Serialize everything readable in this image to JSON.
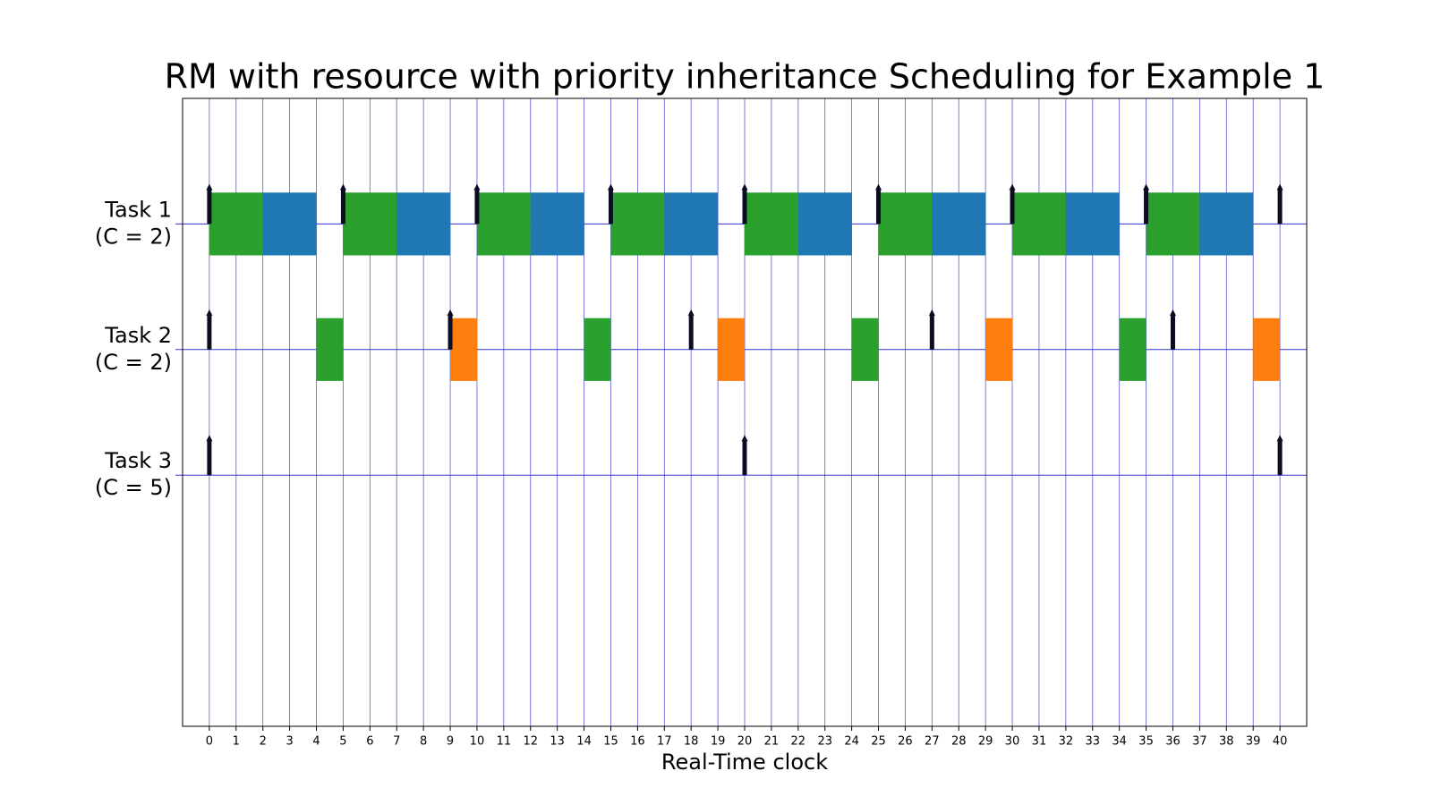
{
  "chart_data": {
    "type": "schedule",
    "title": "RM with resource with priority inheritance Scheduling for Example 1",
    "x_label": "Real-Time clock",
    "xlim": [
      -1,
      41
    ],
    "xticks": [
      0,
      1,
      2,
      3,
      4,
      5,
      6,
      7,
      8,
      9,
      10,
      11,
      12,
      13,
      14,
      15,
      16,
      17,
      18,
      19,
      20,
      21,
      22,
      23,
      24,
      25,
      26,
      27,
      28,
      29,
      30,
      31,
      32,
      33,
      34,
      35,
      36,
      37,
      38,
      39,
      40
    ],
    "grid": true,
    "tasks": [
      {
        "label": "Task 1",
        "cost": "(C = 2)",
        "releases": [
          0,
          5,
          10,
          15,
          20,
          25,
          30,
          35,
          40
        ],
        "segments": [
          {
            "start": 0,
            "end": 2,
            "color": "#2ca02c"
          },
          {
            "start": 2,
            "end": 4,
            "color": "#1f77b4"
          },
          {
            "start": 5,
            "end": 7,
            "color": "#2ca02c"
          },
          {
            "start": 7,
            "end": 9,
            "color": "#1f77b4"
          },
          {
            "start": 10,
            "end": 12,
            "color": "#2ca02c"
          },
          {
            "start": 12,
            "end": 14,
            "color": "#1f77b4"
          },
          {
            "start": 15,
            "end": 17,
            "color": "#2ca02c"
          },
          {
            "start": 17,
            "end": 19,
            "color": "#1f77b4"
          },
          {
            "start": 20,
            "end": 22,
            "color": "#2ca02c"
          },
          {
            "start": 22,
            "end": 24,
            "color": "#1f77b4"
          },
          {
            "start": 25,
            "end": 27,
            "color": "#2ca02c"
          },
          {
            "start": 27,
            "end": 29,
            "color": "#1f77b4"
          },
          {
            "start": 30,
            "end": 32,
            "color": "#2ca02c"
          },
          {
            "start": 32,
            "end": 34,
            "color": "#1f77b4"
          },
          {
            "start": 35,
            "end": 37,
            "color": "#2ca02c"
          },
          {
            "start": 37,
            "end": 39,
            "color": "#1f77b4"
          }
        ]
      },
      {
        "label": "Task 2",
        "cost": "(C = 2)",
        "releases": [
          0,
          9,
          18,
          27,
          36
        ],
        "segments": [
          {
            "start": 4,
            "end": 5,
            "color": "#2ca02c"
          },
          {
            "start": 9,
            "end": 10,
            "color": "#ff7f0e"
          },
          {
            "start": 14,
            "end": 15,
            "color": "#2ca02c"
          },
          {
            "start": 19,
            "end": 20,
            "color": "#ff7f0e"
          },
          {
            "start": 24,
            "end": 25,
            "color": "#2ca02c"
          },
          {
            "start": 29,
            "end": 30,
            "color": "#ff7f0e"
          },
          {
            "start": 34,
            "end": 35,
            "color": "#2ca02c"
          },
          {
            "start": 39,
            "end": 40,
            "color": "#ff7f0e"
          }
        ]
      },
      {
        "label": "Task 3",
        "cost": "(C = 5)",
        "releases": [
          0,
          20,
          40
        ],
        "segments": []
      }
    ]
  }
}
